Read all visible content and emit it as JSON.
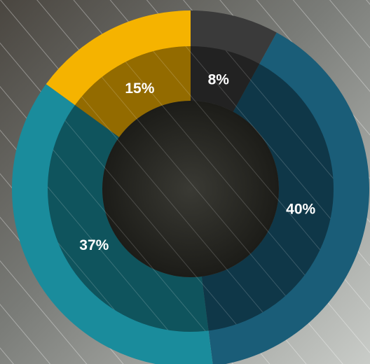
{
  "chart_data": {
    "type": "donut",
    "values": [
      8,
      40,
      37,
      15
    ],
    "value_labels": [
      "8%",
      "40%",
      "37%",
      "15%"
    ],
    "colors": [
      "#3a3a3a",
      "#1a5d78",
      "#1a8c9c",
      "#f5b300"
    ]
  }
}
